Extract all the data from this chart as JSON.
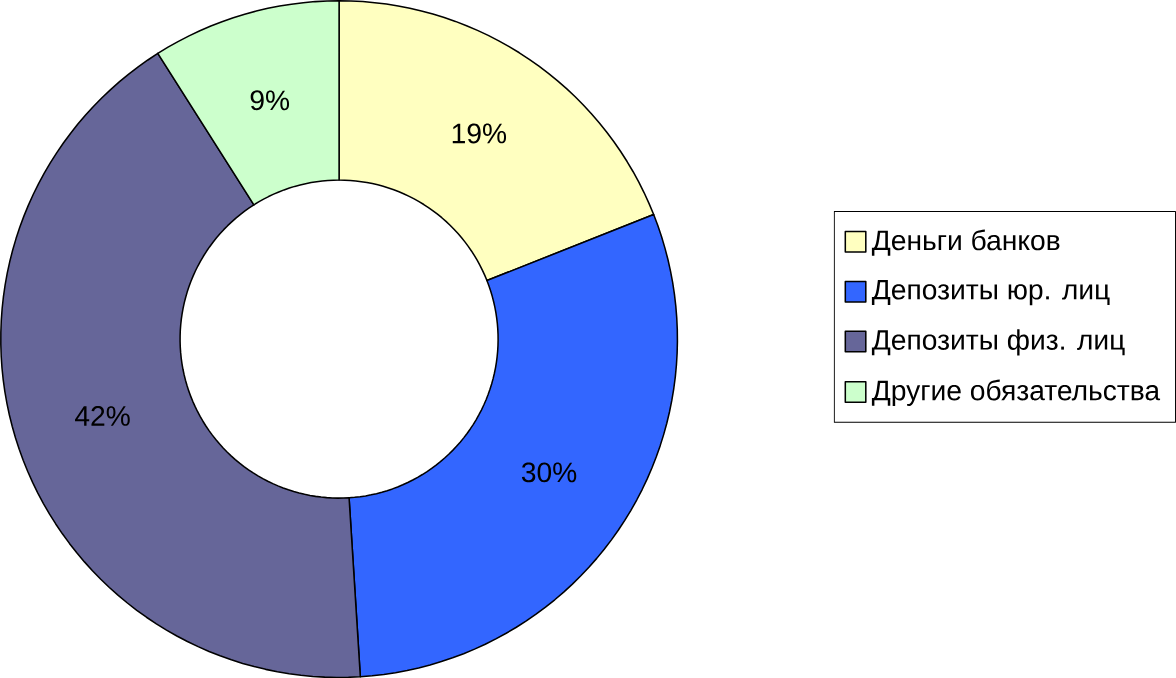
{
  "chart_data": {
    "type": "donut",
    "categories": [
      "Деньги банков",
      "Депозиты юр. лиц",
      "Депозиты физ. лиц",
      "Другие обязательства"
    ],
    "values": [
      19,
      30,
      42,
      9
    ],
    "value_labels": [
      "19%",
      "30%",
      "42%",
      "9%"
    ],
    "colors": [
      "#ffffc0",
      "#3366ff",
      "#666699",
      "#ccffcc"
    ],
    "legend": "right"
  }
}
